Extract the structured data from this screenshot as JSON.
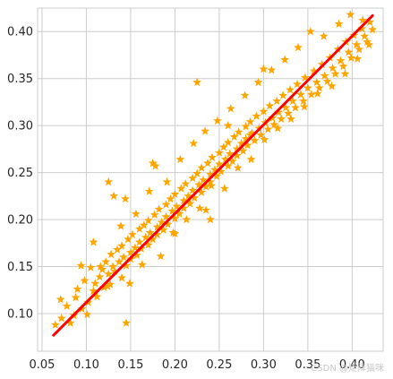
{
  "chart_data": {
    "type": "scatter",
    "title": "",
    "xlabel": "",
    "ylabel": "",
    "xlim": [
      0.045,
      0.435
    ],
    "ylim": [
      0.06,
      0.425
    ],
    "grid": true,
    "x_ticks": [
      0.05,
      0.1,
      0.15,
      0.2,
      0.25,
      0.3,
      0.35,
      0.4
    ],
    "x_tick_labels": [
      "0.05",
      "0.10",
      "0.15",
      "0.20",
      "0.25",
      "0.30",
      "0.35",
      "0.40"
    ],
    "y_ticks": [
      0.1,
      0.15,
      0.2,
      0.25,
      0.3,
      0.35,
      0.4
    ],
    "y_tick_labels": [
      "0.10",
      "0.15",
      "0.20",
      "0.25",
      "0.30",
      "0.35",
      "0.40"
    ],
    "marker": "star",
    "colors": {
      "points": "#FFA500",
      "fit_line": "#FF0000",
      "grid": "#cccccc",
      "axes": "#333333"
    },
    "series": [
      {
        "values": [
          [
            0.065,
            0.088
          ],
          [
            0.072,
            0.095
          ],
          [
            0.078,
            0.108
          ],
          [
            0.082,
            0.09
          ],
          [
            0.088,
            0.117
          ],
          [
            0.09,
            0.126
          ],
          [
            0.095,
            0.105
          ],
          [
            0.098,
            0.135
          ],
          [
            0.102,
            0.112
          ],
          [
            0.105,
            0.149
          ],
          [
            0.108,
            0.124
          ],
          [
            0.11,
            0.132
          ],
          [
            0.112,
            0.118
          ],
          [
            0.115,
            0.139
          ],
          [
            0.118,
            0.147
          ],
          [
            0.12,
            0.128
          ],
          [
            0.122,
            0.155
          ],
          [
            0.125,
            0.142
          ],
          [
            0.127,
            0.131
          ],
          [
            0.128,
            0.163
          ],
          [
            0.13,
            0.15
          ],
          [
            0.132,
            0.145
          ],
          [
            0.135,
            0.168
          ],
          [
            0.137,
            0.155
          ],
          [
            0.14,
            0.138
          ],
          [
            0.14,
            0.172
          ],
          [
            0.142,
            0.16
          ],
          [
            0.145,
            0.151
          ],
          [
            0.147,
            0.179
          ],
          [
            0.15,
            0.165
          ],
          [
            0.15,
            0.158
          ],
          [
            0.152,
            0.184
          ],
          [
            0.155,
            0.17
          ],
          [
            0.157,
            0.162
          ],
          [
            0.16,
            0.19
          ],
          [
            0.16,
            0.176
          ],
          [
            0.162,
            0.169
          ],
          [
            0.165,
            0.194
          ],
          [
            0.167,
            0.181
          ],
          [
            0.17,
            0.173
          ],
          [
            0.17,
            0.199
          ],
          [
            0.172,
            0.186
          ],
          [
            0.175,
            0.179
          ],
          [
            0.177,
            0.205
          ],
          [
            0.18,
            0.192
          ],
          [
            0.18,
            0.184
          ],
          [
            0.182,
            0.211
          ],
          [
            0.185,
            0.197
          ],
          [
            0.187,
            0.189
          ],
          [
            0.19,
            0.216
          ],
          [
            0.19,
            0.203
          ],
          [
            0.192,
            0.195
          ],
          [
            0.195,
            0.222
          ],
          [
            0.197,
            0.209
          ],
          [
            0.2,
            0.201
          ],
          [
            0.2,
            0.227
          ],
          [
            0.202,
            0.214
          ],
          [
            0.205,
            0.206
          ],
          [
            0.207,
            0.233
          ],
          [
            0.21,
            0.22
          ],
          [
            0.21,
            0.212
          ],
          [
            0.212,
            0.238
          ],
          [
            0.215,
            0.225
          ],
          [
            0.217,
            0.217
          ],
          [
            0.22,
            0.244
          ],
          [
            0.22,
            0.231
          ],
          [
            0.222,
            0.223
          ],
          [
            0.225,
            0.249
          ],
          [
            0.227,
            0.237
          ],
          [
            0.23,
            0.229
          ],
          [
            0.23,
            0.255
          ],
          [
            0.232,
            0.242
          ],
          [
            0.235,
            0.235
          ],
          [
            0.237,
            0.26
          ],
          [
            0.24,
            0.248
          ],
          [
            0.24,
            0.24
          ],
          [
            0.242,
            0.266
          ],
          [
            0.245,
            0.253
          ],
          [
            0.247,
            0.246
          ],
          [
            0.25,
            0.271
          ],
          [
            0.25,
            0.259
          ],
          [
            0.252,
            0.251
          ],
          [
            0.255,
            0.277
          ],
          [
            0.257,
            0.264
          ],
          [
            0.26,
            0.257
          ],
          [
            0.26,
            0.282
          ],
          [
            0.262,
            0.27
          ],
          [
            0.265,
            0.262
          ],
          [
            0.267,
            0.288
          ],
          [
            0.27,
            0.275
          ],
          [
            0.27,
            0.268
          ],
          [
            0.272,
            0.293
          ],
          [
            0.275,
            0.281
          ],
          [
            0.277,
            0.273
          ],
          [
            0.28,
            0.299
          ],
          [
            0.28,
            0.286
          ],
          [
            0.282,
            0.279
          ],
          [
            0.285,
            0.304
          ],
          [
            0.287,
            0.292
          ],
          [
            0.29,
            0.284
          ],
          [
            0.292,
            0.31
          ],
          [
            0.295,
            0.297
          ],
          [
            0.297,
            0.29
          ],
          [
            0.3,
            0.315
          ],
          [
            0.302,
            0.303
          ],
          [
            0.305,
            0.296
          ],
          [
            0.307,
            0.321
          ],
          [
            0.31,
            0.308
          ],
          [
            0.312,
            0.301
          ],
          [
            0.315,
            0.326
          ],
          [
            0.317,
            0.314
          ],
          [
            0.32,
            0.307
          ],
          [
            0.322,
            0.332
          ],
          [
            0.325,
            0.319
          ],
          [
            0.328,
            0.313
          ],
          [
            0.33,
            0.338
          ],
          [
            0.333,
            0.326
          ],
          [
            0.336,
            0.319
          ],
          [
            0.338,
            0.344
          ],
          [
            0.342,
            0.333
          ],
          [
            0.345,
            0.326
          ],
          [
            0.347,
            0.351
          ],
          [
            0.35,
            0.34
          ],
          [
            0.354,
            0.333
          ],
          [
            0.357,
            0.358
          ],
          [
            0.36,
            0.346
          ],
          [
            0.363,
            0.34
          ],
          [
            0.366,
            0.365
          ],
          [
            0.369,
            0.353
          ],
          [
            0.372,
            0.347
          ],
          [
            0.375,
            0.372
          ],
          [
            0.378,
            0.361
          ],
          [
            0.381,
            0.355
          ],
          [
            0.384,
            0.381
          ],
          [
            0.387,
            0.369
          ],
          [
            0.39,
            0.363
          ],
          [
            0.393,
            0.389
          ],
          [
            0.396,
            0.378
          ],
          [
            0.399,
            0.372
          ],
          [
            0.402,
            0.396
          ],
          [
            0.405,
            0.386
          ],
          [
            0.408,
            0.381
          ],
          [
            0.411,
            0.403
          ],
          [
            0.414,
            0.395
          ],
          [
            0.417,
            0.389
          ],
          [
            0.42,
            0.41
          ],
          [
            0.423,
            0.402
          ],
          [
            0.071,
            0.115
          ],
          [
            0.086,
            0.098
          ],
          [
            0.094,
            0.151
          ],
          [
            0.101,
            0.099
          ],
          [
            0.108,
            0.176
          ],
          [
            0.116,
            0.15
          ],
          [
            0.124,
            0.129
          ],
          [
            0.131,
            0.225
          ],
          [
            0.139,
            0.193
          ],
          [
            0.144,
            0.222
          ],
          [
            0.149,
            0.132
          ],
          [
            0.156,
            0.206
          ],
          [
            0.163,
            0.152
          ],
          [
            0.171,
            0.23
          ],
          [
            0.178,
            0.257
          ],
          [
            0.184,
            0.161
          ],
          [
            0.191,
            0.24
          ],
          [
            0.198,
            0.186
          ],
          [
            0.206,
            0.264
          ],
          [
            0.213,
            0.2
          ],
          [
            0.221,
            0.281
          ],
          [
            0.228,
            0.212
          ],
          [
            0.234,
            0.294
          ],
          [
            0.241,
            0.236
          ],
          [
            0.248,
            0.305
          ],
          [
            0.256,
            0.233
          ],
          [
            0.263,
            0.318
          ],
          [
            0.271,
            0.255
          ],
          [
            0.279,
            0.332
          ],
          [
            0.286,
            0.264
          ],
          [
            0.294,
            0.346
          ],
          [
            0.301,
            0.285
          ],
          [
            0.309,
            0.359
          ],
          [
            0.316,
            0.297
          ],
          [
            0.324,
            0.37
          ],
          [
            0.331,
            0.307
          ],
          [
            0.339,
            0.383
          ],
          [
            0.346,
            0.32
          ],
          [
            0.353,
            0.4
          ],
          [
            0.361,
            0.334
          ],
          [
            0.368,
            0.395
          ],
          [
            0.377,
            0.342
          ],
          [
            0.385,
            0.408
          ],
          [
            0.392,
            0.355
          ],
          [
            0.398,
            0.418
          ],
          [
            0.406,
            0.371
          ],
          [
            0.412,
            0.412
          ],
          [
            0.419,
            0.386
          ],
          [
            0.225,
            0.346
          ],
          [
            0.175,
            0.26
          ],
          [
            0.125,
            0.24
          ],
          [
            0.24,
            0.2
          ],
          [
            0.145,
            0.09
          ],
          [
            0.2,
            0.185
          ],
          [
            0.235,
            0.21
          ],
          [
            0.285,
            0.29
          ],
          [
            0.3,
            0.36
          ],
          [
            0.26,
            0.3
          ]
        ]
      }
    ],
    "fit_line": [
      [
        0.063,
        0.077
      ],
      [
        0.423,
        0.417
      ]
    ]
  },
  "watermark": "CSDN @矩阵猫咪"
}
